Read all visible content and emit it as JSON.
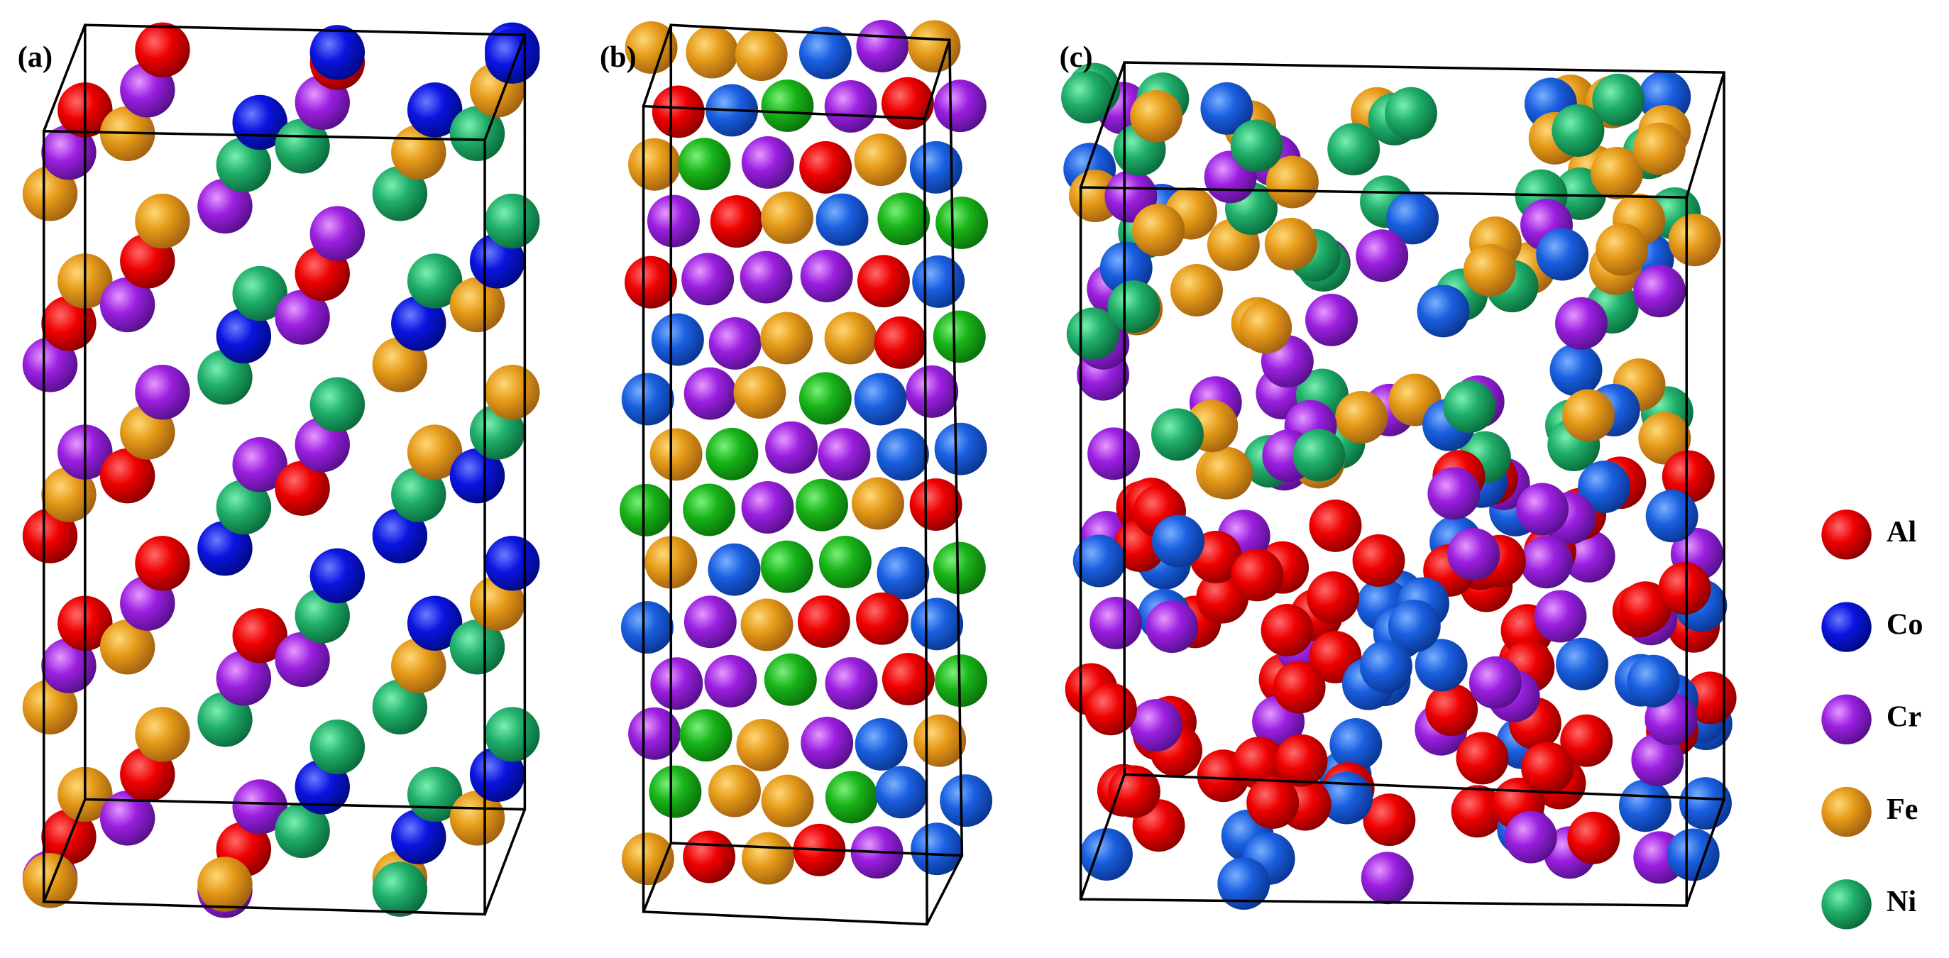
{
  "panels": [
    {
      "label": "(a)"
    },
    {
      "label": "(b)"
    },
    {
      "label": "(c)"
    }
  ],
  "legend": [
    "Al",
    "Co",
    "Cr",
    "Fe",
    "Ni"
  ]
}
